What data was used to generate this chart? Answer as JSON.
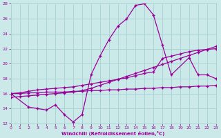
{
  "xlabel": "Windchill (Refroidissement éolien,°C)",
  "bg_color": "#cce9e9",
  "grid_color": "#aad4d4",
  "line_color": "#990099",
  "xmin": 0,
  "xmax": 23,
  "ymin": 12,
  "ymax": 28,
  "yticks": [
    12,
    14,
    16,
    18,
    20,
    22,
    24,
    26,
    28
  ],
  "xticks": [
    0,
    1,
    2,
    3,
    4,
    5,
    6,
    7,
    8,
    9,
    10,
    11,
    12,
    13,
    14,
    15,
    16,
    17,
    18,
    19,
    20,
    21,
    22,
    23
  ],
  "line1_x": [
    0,
    1,
    2,
    3,
    4,
    5,
    6,
    7,
    8,
    9,
    10,
    11,
    12,
    13,
    14,
    15,
    16,
    17,
    18,
    19,
    20,
    21,
    22,
    23
  ],
  "line1_y": [
    16.0,
    16.0,
    16.1,
    16.1,
    16.2,
    16.2,
    16.2,
    16.3,
    16.3,
    16.4,
    16.4,
    16.5,
    16.5,
    16.6,
    16.6,
    16.7,
    16.7,
    16.8,
    16.8,
    16.9,
    16.9,
    17.0,
    17.0,
    17.1
  ],
  "line2_x": [
    0,
    1,
    2,
    3,
    4,
    5,
    6,
    7,
    8,
    9,
    10,
    11,
    12,
    13,
    14,
    15,
    16,
    17,
    18,
    19,
    20,
    21,
    22,
    23
  ],
  "line2_y": [
    15.5,
    15.6,
    15.7,
    15.8,
    15.9,
    16.0,
    16.1,
    16.2,
    16.4,
    16.7,
    17.1,
    17.5,
    17.9,
    18.3,
    18.7,
    19.1,
    19.5,
    19.9,
    20.3,
    20.7,
    21.1,
    21.5,
    21.9,
    22.3
  ],
  "line3_x": [
    0,
    1,
    2,
    3,
    4,
    5,
    6,
    7,
    8,
    9,
    10,
    11,
    12,
    13,
    14,
    15,
    16,
    17,
    18,
    19,
    20,
    21,
    22,
    23
  ],
  "line3_y": [
    16.0,
    16.1,
    16.3,
    16.5,
    16.6,
    16.7,
    16.8,
    16.9,
    17.1,
    17.3,
    17.5,
    17.7,
    17.9,
    18.1,
    18.4,
    18.7,
    18.9,
    20.7,
    21.0,
    21.3,
    21.6,
    21.8,
    21.9,
    22.0
  ],
  "line4_x": [
    0,
    2,
    3,
    4,
    5,
    6,
    7,
    8,
    9,
    10,
    11,
    12,
    13,
    14,
    15,
    16,
    17,
    18,
    20,
    21,
    22,
    23
  ],
  "line4_y": [
    16.0,
    14.2,
    14.0,
    13.8,
    14.5,
    13.2,
    12.2,
    13.2,
    18.5,
    21.0,
    23.2,
    25.0,
    26.0,
    27.8,
    28.0,
    26.5,
    22.5,
    18.5,
    20.8,
    18.5,
    18.5,
    18.0
  ]
}
